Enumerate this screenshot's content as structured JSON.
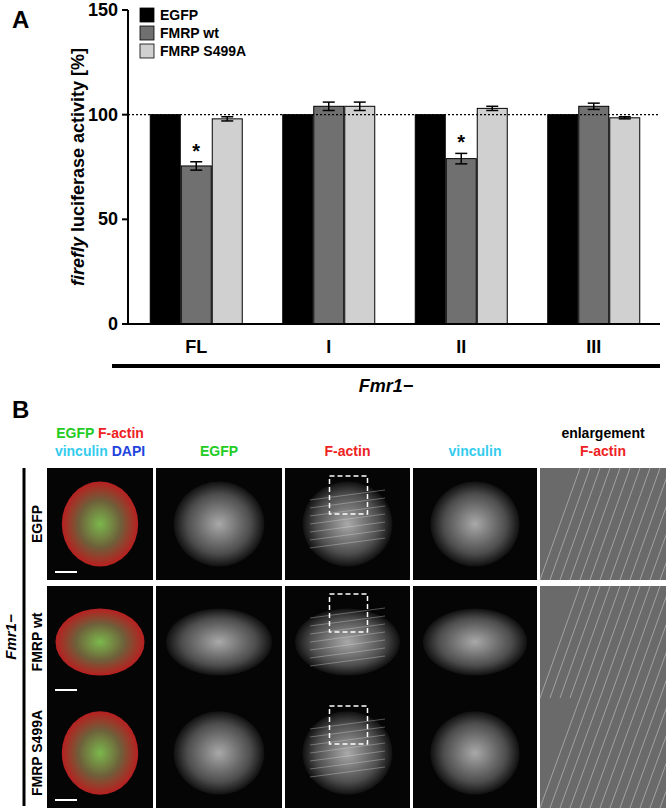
{
  "chart_data": {
    "type": "bar",
    "panel_label": "A",
    "y_label": "firefly luciferase activity [%]",
    "categories": [
      "FL",
      "I",
      "II",
      "III"
    ],
    "group_label": "Fmr1−",
    "series": [
      {
        "name": "EGFP",
        "color": "#000000",
        "values": [
          100,
          100,
          100,
          100
        ],
        "errors": [
          0,
          0,
          0,
          0
        ]
      },
      {
        "name": "FMRP wt",
        "color": "#707070",
        "values": [
          75.5,
          104,
          79,
          104
        ],
        "errors": [
          2,
          2,
          2.5,
          1.5
        ]
      },
      {
        "name": "FMRP S499A",
        "color": "#d0d0d0",
        "values": [
          98,
          104,
          103,
          98.5
        ],
        "errors": [
          1,
          2,
          1,
          0.5
        ]
      }
    ],
    "annotations": [
      {
        "text": "*",
        "series": 1,
        "category": 0
      },
      {
        "text": "*",
        "series": 1,
        "category": 2
      }
    ],
    "reference_line": 100,
    "ylim": [
      0,
      150
    ],
    "yticks": [
      0,
      50,
      100,
      150
    ],
    "grid": false,
    "legend": "top-left"
  },
  "panel_b": {
    "panel_label": "B",
    "merge_header": [
      "EGFP",
      "F-actin",
      "vinculin",
      "DAPI"
    ],
    "column_headers": [
      "EGFP",
      "F-actin",
      "vinculin"
    ],
    "enlargement_header": [
      "enlargement",
      "F-actin"
    ],
    "rows": [
      "EGFP",
      "FMRP wt",
      "FMRP S499A"
    ],
    "group_label": "Fmr1−"
  }
}
